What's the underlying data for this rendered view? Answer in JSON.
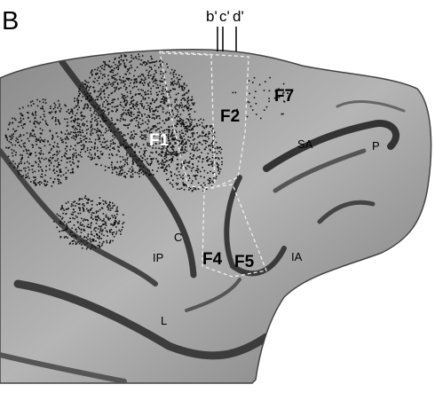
{
  "panel_label": "B",
  "section_markers": [
    "b'",
    "c'",
    "d'"
  ],
  "areas": [
    "F1",
    "F2",
    "F7",
    "F4",
    "F5"
  ],
  "sulci": [
    "SA",
    "P",
    "C",
    "IP",
    "IA",
    "L"
  ]
}
